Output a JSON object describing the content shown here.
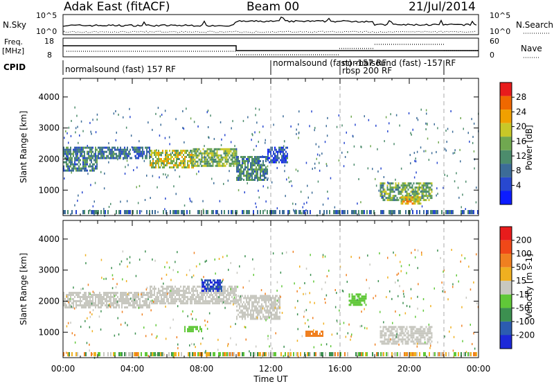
{
  "header": {
    "station": "Adak East (fitACF)",
    "beam": "Beam 00",
    "date": "21/Jul/2014"
  },
  "noise_panel": {
    "left_label": "N.Sky",
    "right_label": "N.Search",
    "left_ticks": [
      "10^5",
      "10^0"
    ],
    "right_ticks": [
      "10^5",
      "10^0"
    ]
  },
  "freq_panel": {
    "left_label_line1": "Freq.",
    "left_label_line2": "[MHz]",
    "right_label": "Nave",
    "left_ticks": [
      "18",
      "8"
    ],
    "right_ticks": [
      "60",
      "0"
    ]
  },
  "cpid": {
    "label": "CPID",
    "segments": [
      {
        "start_hour": 0,
        "end_hour": 12,
        "text": "normalsound (fast) 157 RF"
      },
      {
        "start_hour": 12,
        "end_hour": 16,
        "text": "normalsound (fast) -157 RF"
      },
      {
        "start_hour": 16,
        "end_hour": 22,
        "text": "rbsp 200 RF"
      },
      {
        "start_hour": 16,
        "end_hour": 22,
        "text": "normalsound (fast) -157 RF"
      }
    ]
  },
  "chart_data": [
    {
      "type": "heatmap",
      "panel": "power",
      "ylabel": "Slant Range [km]",
      "yticks": [
        "1000",
        "2000",
        "3000",
        "4000"
      ],
      "ylim": [
        180,
        4600
      ],
      "colorbar_label": "Power [dB]",
      "colorbar_ticks": [
        "4",
        "8",
        "12",
        "16",
        "20",
        "24",
        "28"
      ],
      "colorbar_range": [
        0,
        30
      ],
      "colorbar_colors": [
        "#0c1cff",
        "#2848d0",
        "#3c6c98",
        "#4c8c6c",
        "#70a850",
        "#c8c828",
        "#f0a000",
        "#f06800",
        "#e81c1c"
      ],
      "echo_regions": [
        {
          "t0": 0.0,
          "t1": 2.0,
          "r0": 1600,
          "r1": 2400,
          "level": 10
        },
        {
          "t0": 2.0,
          "t1": 5.0,
          "r0": 2000,
          "r1": 2400,
          "level": 9
        },
        {
          "t0": 5.0,
          "t1": 7.5,
          "r0": 1700,
          "r1": 2300,
          "level": 17
        },
        {
          "t0": 7.5,
          "t1": 10.0,
          "r0": 1750,
          "r1": 2350,
          "level": 15
        },
        {
          "t0": 10.0,
          "t1": 11.8,
          "r0": 1300,
          "r1": 2100,
          "level": 11
        },
        {
          "t0": 11.8,
          "t1": 13.0,
          "r0": 1900,
          "r1": 2400,
          "level": 6
        },
        {
          "t0": 18.3,
          "t1": 21.3,
          "r0": 650,
          "r1": 1250,
          "level": 14
        },
        {
          "t0": 19.5,
          "t1": 20.7,
          "r0": 550,
          "r1": 800,
          "level": 20
        }
      ]
    },
    {
      "type": "heatmap",
      "panel": "velocity",
      "ylabel": "Slant Range [km]",
      "yticks": [
        "1000",
        "2000",
        "3000",
        "4000"
      ],
      "ylim": [
        180,
        4600
      ],
      "colorbar_label": "Velocity [m s-1]",
      "colorbar_ticks": [
        "200",
        "100",
        "50",
        "15",
        "-15",
        "-50",
        "-100",
        "-200"
      ],
      "colorbar_colors": [
        "#1c28d8",
        "#2c5cb0",
        "#3c9050",
        "#60c838",
        "#c8c8c0",
        "#f0b020",
        "#f08020",
        "#f04818",
        "#e81c1c"
      ],
      "ground_scatter_color": "#c8c8c0",
      "echo_regions": [
        {
          "t0": 0.0,
          "t1": 5.0,
          "r0": 1800,
          "r1": 2300,
          "velocity": 0
        },
        {
          "t0": 5.0,
          "t1": 10.0,
          "r0": 1900,
          "r1": 2500,
          "velocity": 0
        },
        {
          "t0": 10.0,
          "t1": 12.5,
          "r0": 1400,
          "r1": 2200,
          "velocity": 0
        },
        {
          "t0": 8.0,
          "t1": 9.2,
          "r0": 2350,
          "r1": 2700,
          "velocity": 200
        },
        {
          "t0": 7.0,
          "t1": 8.0,
          "r0": 1000,
          "r1": 1200,
          "velocity": 30
        },
        {
          "t0": 14.0,
          "t1": 15.0,
          "r0": 900,
          "r1": 1050,
          "velocity": -60
        },
        {
          "t0": 16.5,
          "t1": 17.5,
          "r0": 1900,
          "r1": 2250,
          "velocity": 30
        },
        {
          "t0": 18.3,
          "t1": 21.3,
          "r0": 650,
          "r1": 1200,
          "velocity": 0
        }
      ]
    }
  ],
  "x_axis": {
    "label": "Time UT",
    "ticks": [
      "00:00",
      "04:00",
      "08:00",
      "12:00",
      "16:00",
      "20:00",
      "00:00"
    ],
    "range_hours": [
      0,
      24
    ],
    "mode_change_hours": [
      12,
      16,
      22
    ]
  }
}
